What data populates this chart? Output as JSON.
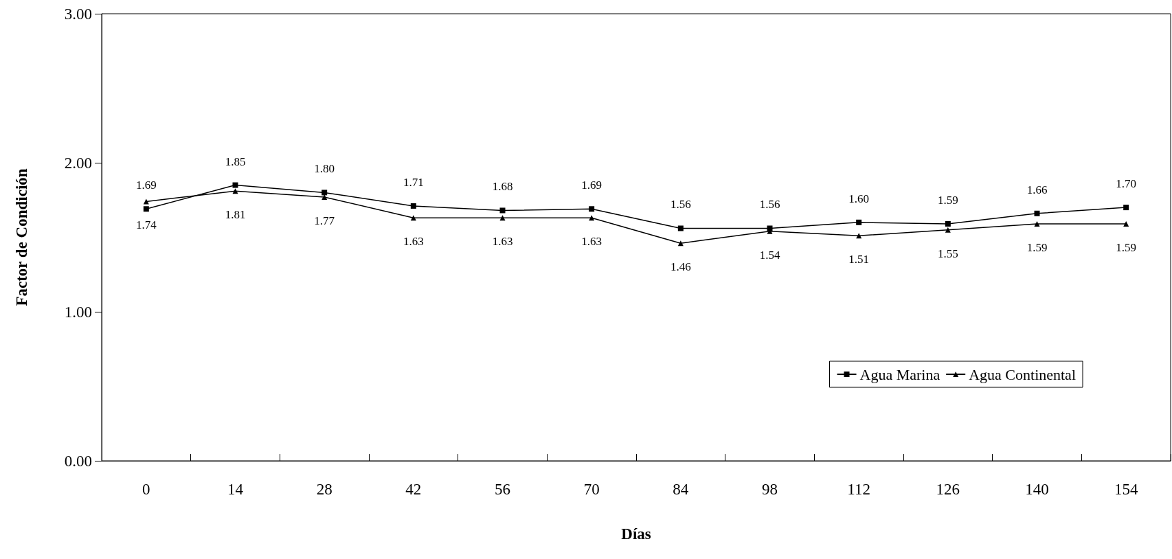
{
  "chart_data": {
    "type": "line",
    "xlabel": "Días",
    "ylabel": "Factor de Condición",
    "categories": [
      "0",
      "14",
      "28",
      "42",
      "56",
      "70",
      "84",
      "98",
      "112",
      "126",
      "140",
      "154"
    ],
    "series": [
      {
        "name": "Agua Marina",
        "color": "#000000",
        "marker": "square",
        "values": [
          1.69,
          1.85,
          1.8,
          1.71,
          1.68,
          1.69,
          1.56,
          1.56,
          1.6,
          1.59,
          1.66,
          1.7
        ],
        "value_labels": [
          "1.69",
          "1.85",
          "1.80",
          "1.71",
          "1.68",
          "1.69",
          "1.56",
          "1.56",
          "1.60",
          "1.59",
          "1.66",
          "1.70"
        ]
      },
      {
        "name": "Agua Continental",
        "color": "#000000",
        "marker": "triangle",
        "values": [
          1.74,
          1.81,
          1.77,
          1.63,
          1.63,
          1.63,
          1.46,
          1.54,
          1.51,
          1.55,
          1.59,
          1.59
        ],
        "value_labels": [
          "1.74",
          "1.81",
          "1.77",
          "1.63",
          "1.63",
          "1.63",
          "1.46",
          "1.54",
          "1.51",
          "1.55",
          "1.59",
          "1.59"
        ]
      }
    ],
    "ylim": [
      0,
      3
    ],
    "yticks": [
      {
        "value": 0,
        "label": "0.00"
      },
      {
        "value": 1,
        "label": "1.00"
      },
      {
        "value": 2,
        "label": "2.00"
      },
      {
        "value": 3,
        "label": "3.00"
      }
    ],
    "grid": false,
    "legend": "bottom right",
    "line_style": "solid"
  }
}
